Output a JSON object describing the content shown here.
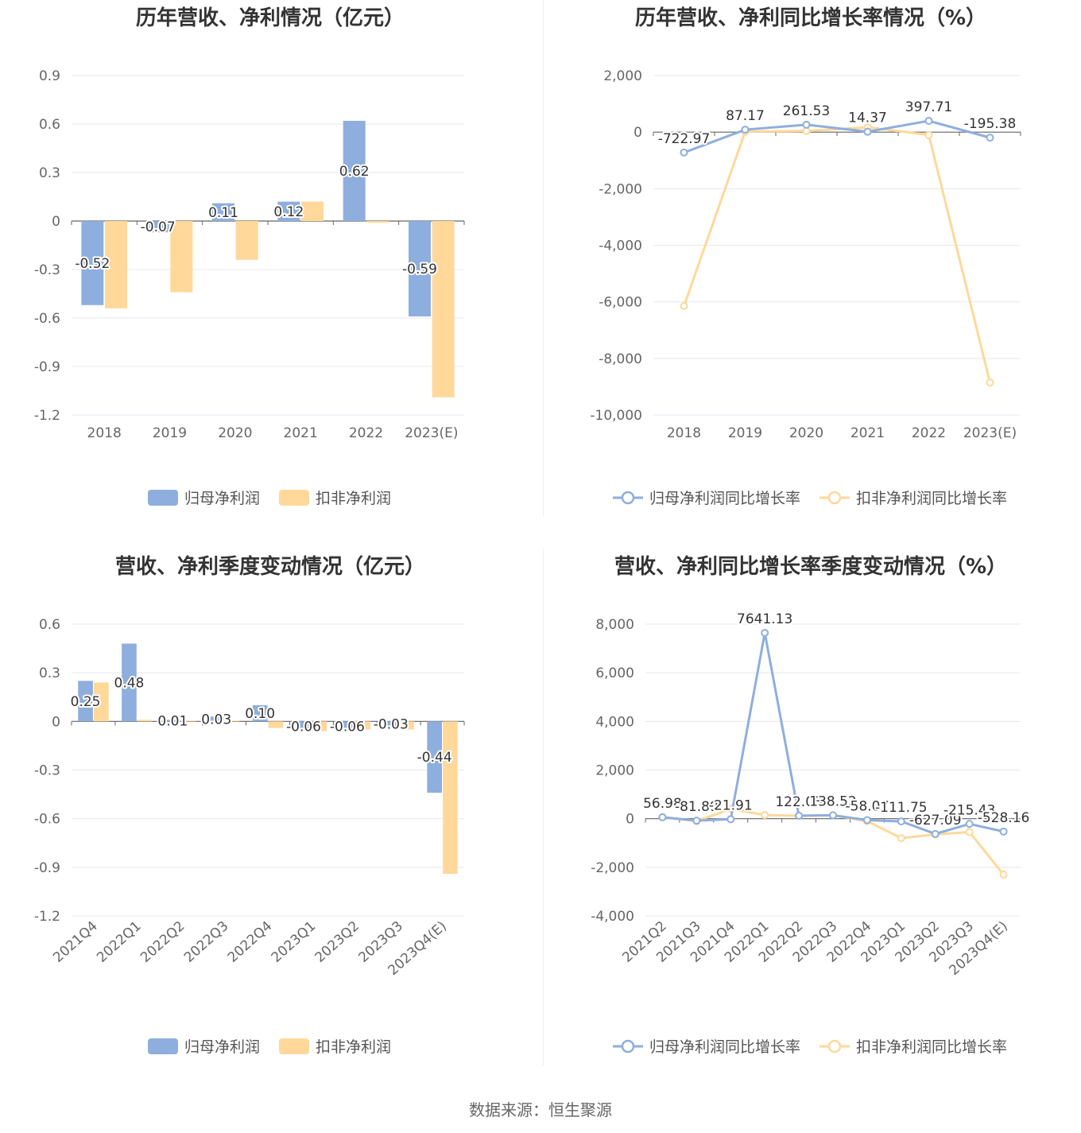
{
  "footer": {
    "source": "数据来源：恒生聚源"
  },
  "charts": [
    {
      "id": "annual-profit",
      "title": "历年营收、净利情况（亿元）",
      "legend": [
        "归母净利润",
        "扣非净利润"
      ],
      "colors": [
        "#8eaede",
        "#ffd89a"
      ],
      "chart_data": {
        "type": "bar",
        "categories": [
          "2018",
          "2019",
          "2020",
          "2021",
          "2022",
          "2023(E)"
        ],
        "yticks": [
          "0.9",
          "0.6",
          "0.3",
          "0",
          "-0.3",
          "-0.6",
          "-0.9",
          "-1.2"
        ],
        "ylim": [
          -1.2,
          0.9
        ],
        "series": [
          {
            "name": "归母净利润",
            "values": [
              -0.52,
              -0.07,
              0.11,
              0.12,
              0.62,
              -0.59
            ],
            "labels": [
              "-0.52",
              "-0.07",
              "0.11",
              "0.12",
              "0.62",
              "-0.59"
            ]
          },
          {
            "name": "扣非净利润",
            "values": [
              -0.54,
              -0.44,
              -0.24,
              0.12,
              -0.01,
              -1.09
            ]
          }
        ]
      }
    },
    {
      "id": "annual-growth",
      "title": "历年营收、净利同比增长率情况（%）",
      "legend": [
        "归母净利润同比增长率",
        "扣非净利润同比增长率"
      ],
      "colors": [
        "#8eaede",
        "#ffd89a"
      ],
      "chart_data": {
        "type": "line",
        "categories": [
          "2018",
          "2019",
          "2020",
          "2021",
          "2022",
          "2023(E)"
        ],
        "yticks": [
          "2,000",
          "0",
          "-2,000",
          "-4,000",
          "-6,000",
          "-8,000",
          "-10,000"
        ],
        "ylim": [
          -10000,
          2000
        ],
        "series": [
          {
            "name": "归母净利润同比增长率",
            "values": [
              -722.97,
              87.17,
              261.53,
              14.37,
              397.71,
              -195.38
            ],
            "labels": [
              "-722.97",
              "87.17",
              "261.53",
              "14.37",
              "397.71",
              "-195.38"
            ]
          },
          {
            "name": "扣非净利润同比增长率",
            "values": [
              -6150,
              20,
              40,
              170,
              -100,
              -8850
            ]
          }
        ]
      }
    },
    {
      "id": "quarterly-profit",
      "title": "营收、净利季度变动情况（亿元）",
      "legend": [
        "归母净利润",
        "扣非净利润"
      ],
      "colors": [
        "#8eaede",
        "#ffd89a"
      ],
      "chart_data": {
        "type": "bar",
        "categories": [
          "2021Q4",
          "2022Q1",
          "2022Q2",
          "2022Q3",
          "2022Q4",
          "2023Q1",
          "2023Q2",
          "2023Q3",
          "2023Q4(E)"
        ],
        "yticks": [
          "0.6",
          "0.3",
          "0",
          "-0.3",
          "-0.6",
          "-0.9",
          "-1.2"
        ],
        "ylim": [
          -1.2,
          0.6
        ],
        "series": [
          {
            "name": "归母净利润",
            "values": [
              0.25,
              0.48,
              0.01,
              0.03,
              0.1,
              -0.06,
              -0.06,
              -0.03,
              -0.44
            ],
            "labels": [
              "0.25",
              "0.48",
              "0.01",
              "0.03",
              "0.10",
              "-0.06",
              "-0.06",
              "-0.03",
              "-0.44"
            ]
          },
          {
            "name": "扣非净利润",
            "values": [
              0.24,
              0.01,
              0.005,
              0.005,
              -0.04,
              -0.06,
              -0.05,
              -0.05,
              -0.94
            ]
          }
        ]
      }
    },
    {
      "id": "quarterly-growth",
      "title": "营收、净利同比增长率季度变动情况（%）",
      "legend": [
        "归母净利润同比增长率",
        "扣非净利润同比增长率"
      ],
      "colors": [
        "#8eaede",
        "#ffd89a"
      ],
      "chart_data": {
        "type": "line",
        "categories": [
          "2021Q2",
          "2021Q3",
          "2021Q4",
          "2022Q1",
          "2022Q2",
          "2022Q3",
          "2022Q4",
          "2023Q1",
          "2023Q2",
          "2023Q3",
          "2023Q4(E)"
        ],
        "yticks": [
          "8,000",
          "6,000",
          "4,000",
          "2,000",
          "0",
          "-2,000",
          "-4,000"
        ],
        "ylim": [
          -4000,
          8000
        ],
        "series": [
          {
            "name": "归母净利润同比增长率",
            "values": [
              56.98,
              -81.89,
              -21.91,
              7641.13,
              122.03,
              138.52,
              -58.07,
              -111.75,
              -627.09,
              -215.43,
              -528.16
            ],
            "labels": [
              "56.98",
              "-81.89",
              "-21.91",
              "7641.13",
              "122.03",
              "138.52",
              "-58.07",
              "-111.75",
              "-627.09",
              "-215.43",
              "-528.16"
            ]
          },
          {
            "name": "扣非净利润同比增长率",
            "values": [
              60,
              -100,
              400,
              150,
              120,
              140,
              -100,
              -800,
              -650,
              -550,
              -2300
            ]
          }
        ]
      }
    }
  ]
}
